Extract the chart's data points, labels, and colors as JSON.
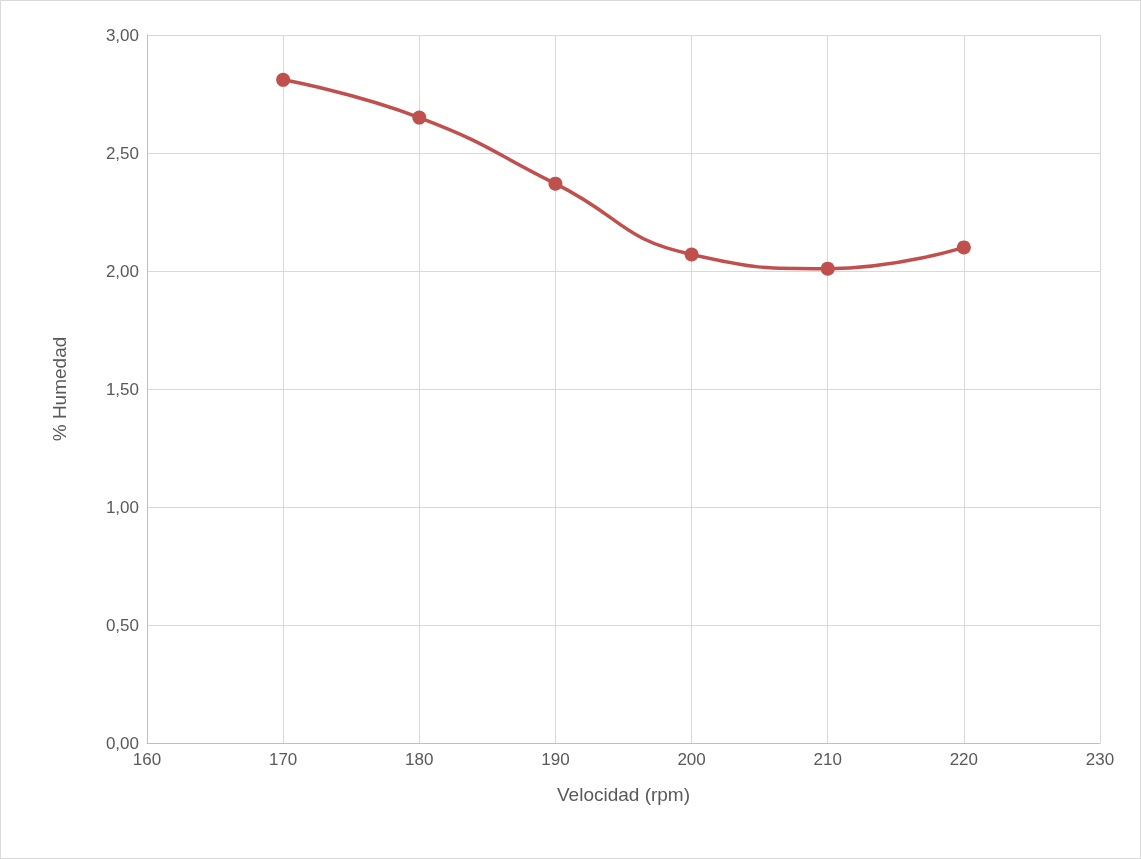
{
  "chart_data": {
    "type": "line",
    "xlabel": "Velocidad (rpm)",
    "ylabel": "% Humedad",
    "x": [
      170,
      180,
      190,
      200,
      210,
      220
    ],
    "series": [
      {
        "color": "#c0504d",
        "values": [
          2.81,
          2.65,
          2.37,
          2.07,
          2.01,
          2.1
        ]
      }
    ],
    "xlim": [
      160,
      230
    ],
    "xticks": [
      160,
      170,
      180,
      190,
      200,
      210,
      220,
      230
    ],
    "ylim": [
      0,
      3
    ],
    "yticks": [
      {
        "value": 0,
        "label": "0,00"
      },
      {
        "value": 0.5,
        "label": "0,50"
      },
      {
        "value": 1,
        "label": "1,00"
      },
      {
        "value": 1.5,
        "label": "1,50"
      },
      {
        "value": 2,
        "label": "2,00"
      },
      {
        "value": 2.5,
        "label": "2,50"
      },
      {
        "value": 3,
        "label": "3,00"
      }
    ],
    "grid": true,
    "marker": "circle",
    "line_style": "solid"
  }
}
